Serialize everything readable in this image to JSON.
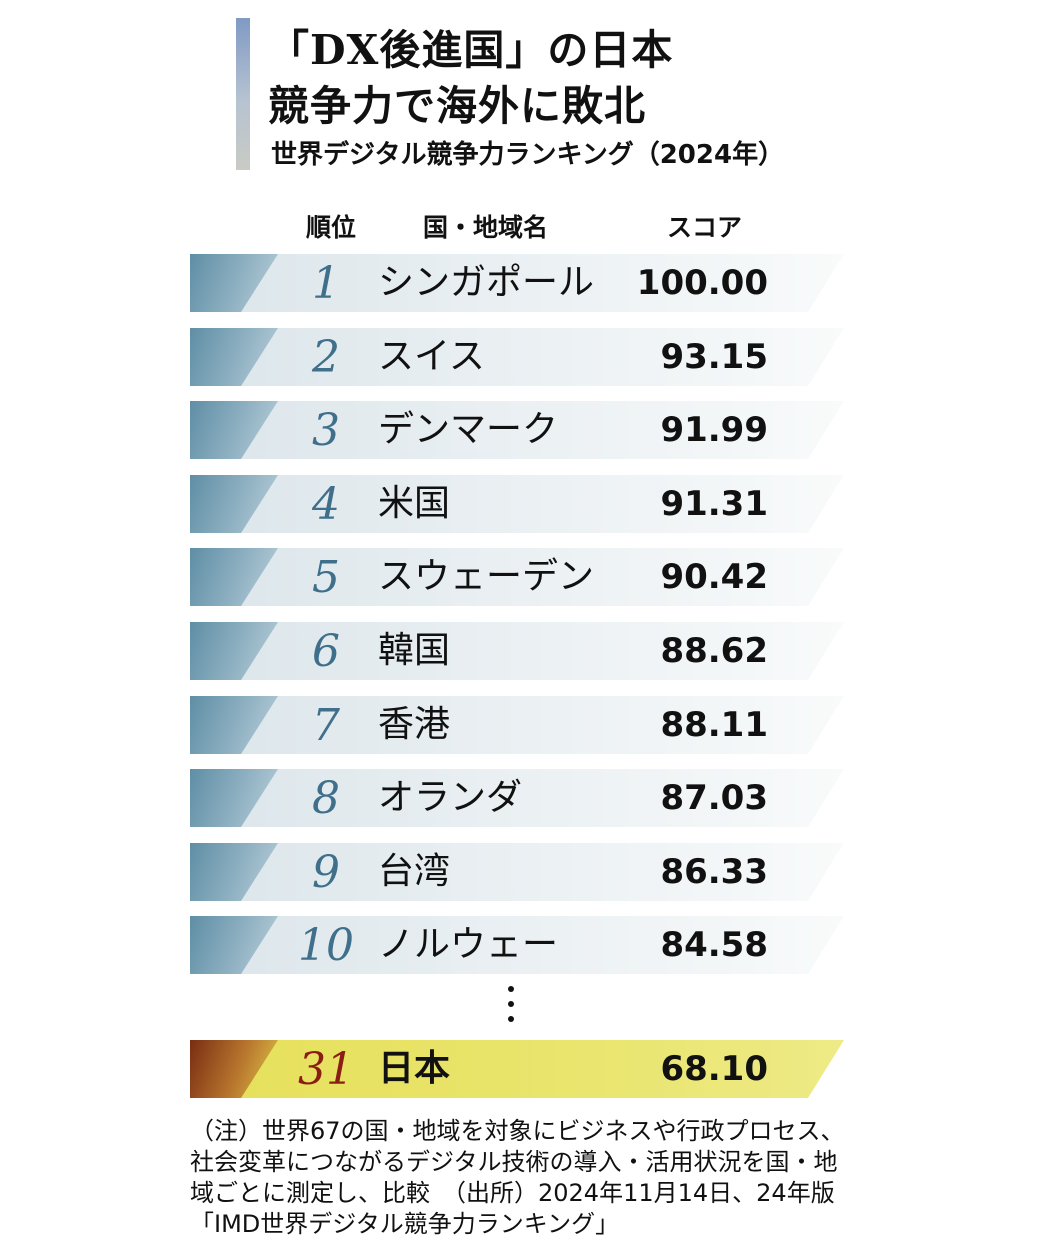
{
  "header": {
    "title_line1": "「DX後進国」の日本",
    "title_line2": "競争力で海外に敗北",
    "subtitle": "世界デジタル競争力ランキング（2024年）"
  },
  "chart_data": {
    "type": "table",
    "columns": [
      "順位",
      "国・地域名",
      "スコア"
    ],
    "rows": [
      {
        "rank": "1",
        "name": "シンガポール",
        "score": "100.00"
      },
      {
        "rank": "2",
        "name": "スイス",
        "score": "93.15"
      },
      {
        "rank": "3",
        "name": "デンマーク",
        "score": "91.99"
      },
      {
        "rank": "4",
        "name": "米国",
        "score": "91.31"
      },
      {
        "rank": "5",
        "name": "スウェーデン",
        "score": "90.42"
      },
      {
        "rank": "6",
        "name": "韓国",
        "score": "88.62"
      },
      {
        "rank": "7",
        "name": "香港",
        "score": "88.11"
      },
      {
        "rank": "8",
        "name": "オランダ",
        "score": "87.03"
      },
      {
        "rank": "9",
        "name": "台湾",
        "score": "86.33"
      },
      {
        "rank": "10",
        "name": "ノルウェー",
        "score": "84.58"
      }
    ],
    "highlight": {
      "rank": "31",
      "name": "日本",
      "score": "68.10"
    },
    "colors": {
      "row_tab": "#5f8ea5",
      "rank_text": "#3f6f8a",
      "highlight_bar": "#e6e05a",
      "highlight_rank_text": "#8a1e14"
    }
  },
  "footnote": "（注）世界67の国・地域を対象にビジネスや行政プロセス、社会変革につながるデジタル技術の導入・活用状況を国・地域ごとに測定し、比較　（出所）2024年11月14日、24年版「IMD世界デジタル競争力ランキング」"
}
